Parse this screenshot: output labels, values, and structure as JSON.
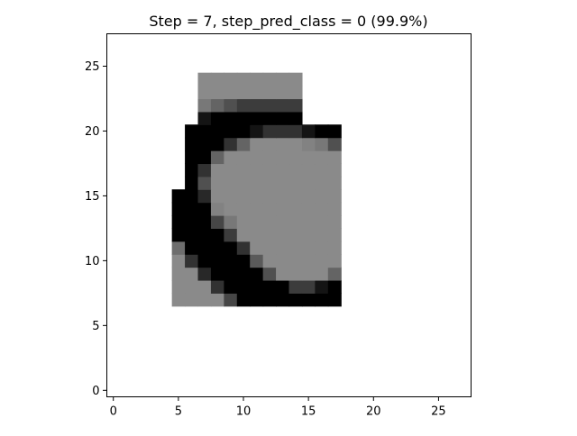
{
  "chart_data": {
    "type": "heatmap",
    "title": "Step = 7, step_pred_class = 0 (99.9%)",
    "xlabel": "",
    "ylabel": "",
    "xlim": [
      -0.5,
      27.5
    ],
    "ylim": [
      27.5,
      -0.5
    ],
    "x_ticks": [
      0,
      5,
      10,
      15,
      20,
      25
    ],
    "y_ticks": [
      0,
      5,
      10,
      15,
      20,
      25
    ],
    "x_tick_labels": [
      "0",
      "5",
      "10",
      "15",
      "20",
      "25"
    ],
    "y_tick_labels": [
      "0",
      "5",
      "10",
      "15",
      "20",
      "25"
    ],
    "colormap": "gray",
    "value_range": [
      0,
      255
    ],
    "background_value": 255,
    "grid": false,
    "rows": [
      {
        "row": 7,
        "start": 5,
        "values": [
          138,
          138,
          138,
          138,
          70,
          0,
          0,
          0,
          0,
          0,
          0,
          0,
          0
        ]
      },
      {
        "row": 8,
        "start": 5,
        "values": [
          138,
          138,
          138,
          50,
          0,
          0,
          0,
          0,
          0,
          60,
          60,
          20,
          0
        ]
      },
      {
        "row": 9,
        "start": 5,
        "values": [
          138,
          138,
          40,
          0,
          0,
          0,
          0,
          80,
          138,
          138,
          138,
          138,
          100
        ]
      },
      {
        "row": 10,
        "start": 5,
        "values": [
          138,
          50,
          0,
          0,
          0,
          0,
          90,
          138,
          138,
          138,
          138,
          138,
          138
        ]
      },
      {
        "row": 11,
        "start": 5,
        "values": [
          110,
          0,
          0,
          0,
          0,
          50,
          138,
          138,
          138,
          138,
          138,
          138,
          138
        ]
      },
      {
        "row": 12,
        "start": 5,
        "values": [
          0,
          0,
          0,
          0,
          60,
          138,
          138,
          138,
          138,
          138,
          138,
          138,
          138
        ]
      },
      {
        "row": 13,
        "start": 5,
        "values": [
          0,
          0,
          0,
          70,
          120,
          138,
          138,
          138,
          138,
          138,
          138,
          138,
          138
        ]
      },
      {
        "row": 14,
        "start": 5,
        "values": [
          0,
          0,
          0,
          130,
          138,
          138,
          138,
          138,
          138,
          138,
          138,
          138,
          138
        ]
      },
      {
        "row": 15,
        "start": 5,
        "values": [
          0,
          0,
          40,
          138,
          138,
          138,
          138,
          138,
          138,
          138,
          138,
          138,
          138
        ]
      },
      {
        "row": 16,
        "start": 6,
        "values": [
          0,
          80,
          138,
          138,
          138,
          138,
          138,
          138,
          138,
          138,
          138,
          138
        ]
      },
      {
        "row": 17,
        "start": 6,
        "values": [
          0,
          50,
          138,
          138,
          138,
          138,
          138,
          138,
          138,
          138,
          138,
          138
        ]
      },
      {
        "row": 18,
        "start": 6,
        "values": [
          0,
          0,
          100,
          138,
          138,
          138,
          138,
          138,
          138,
          138,
          138,
          138
        ]
      },
      {
        "row": 19,
        "start": 6,
        "values": [
          0,
          0,
          0,
          50,
          100,
          138,
          138,
          138,
          138,
          130,
          120,
          80
        ]
      },
      {
        "row": 20,
        "start": 6,
        "values": [
          0,
          0,
          0,
          0,
          0,
          20,
          50,
          50,
          50,
          20,
          0,
          0
        ]
      },
      {
        "row": 21,
        "start": 7,
        "values": [
          20,
          0,
          0,
          0,
          0,
          0,
          0,
          0
        ]
      },
      {
        "row": 22,
        "start": 7,
        "values": [
          120,
          100,
          80,
          60,
          60,
          60,
          60,
          60
        ]
      },
      {
        "row": 23,
        "start": 7,
        "values": [
          138,
          138,
          138,
          138,
          138,
          138,
          138,
          138
        ]
      },
      {
        "row": 24,
        "start": 7,
        "values": [
          138,
          138,
          138,
          138,
          138,
          138,
          138,
          138
        ]
      }
    ]
  }
}
